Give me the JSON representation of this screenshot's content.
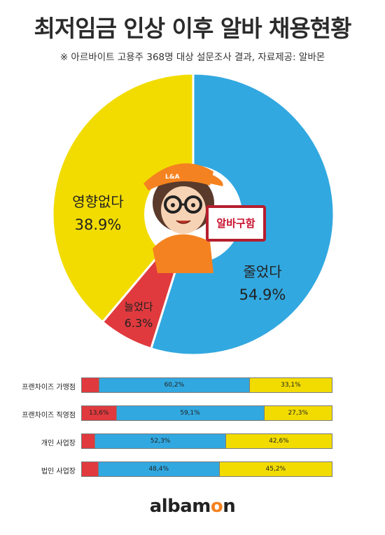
{
  "title": "최저임금 인상 이후 알바 채용현황",
  "subtitle": "※ 아르바이트 고용주 368명 대상 설문조사 결과,  자료제공: 알바몬",
  "colors": {
    "decreased": "#32a8e0",
    "noeffect": "#f2dc00",
    "increased": "#e03a3e"
  },
  "mascot_sign": "알바구함",
  "logo": {
    "pre": "albam",
    "o": "o",
    "post": "n"
  },
  "chart_data": [
    {
      "type": "pie",
      "slices": [
        {
          "name": "줄었다",
          "value": 54.9,
          "label": "54.9%",
          "color": "#32a8e0"
        },
        {
          "name": "늘었다",
          "value": 6.3,
          "label": "6.3%",
          "color": "#e03a3e"
        },
        {
          "name": "영향없다",
          "value": 38.9,
          "label": "38.9%",
          "color": "#f2dc00"
        }
      ]
    },
    {
      "type": "bar",
      "orientation": "horizontal-stacked",
      "categories": [
        "프랜차이즈 가맹점",
        "프랜차이즈 직영점",
        "개인 사업장",
        "법인 사업장"
      ],
      "series": [
        {
          "key": "increased",
          "values": [
            6.7,
            13.6,
            5.1,
            6.4
          ],
          "labels": [
            "",
            "13,6%",
            "",
            ""
          ]
        },
        {
          "key": "decreased",
          "values": [
            60.2,
            59.1,
            52.3,
            48.4
          ],
          "labels": [
            "60,2%",
            "59,1%",
            "52,3%",
            "48,4%"
          ]
        },
        {
          "key": "noeffect",
          "values": [
            33.1,
            27.3,
            42.6,
            45.2
          ],
          "labels": [
            "33,1%",
            "27,3%",
            "42,6%",
            "45,2%"
          ]
        }
      ]
    }
  ]
}
